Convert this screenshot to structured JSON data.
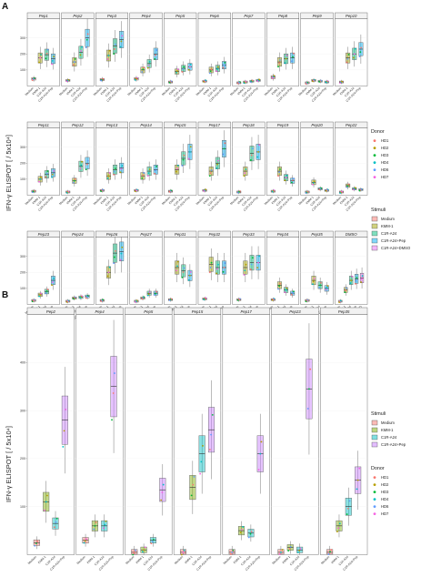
{
  "panel_a_label": "A",
  "panel_b_label": "B",
  "ylabel": "IFN-γ ELISPOT [ / 5x10⁴]",
  "legend_donor": {
    "title": "Donor",
    "items": [
      {
        "label": "HD1",
        "color": "#f8766d"
      },
      {
        "label": "HD2",
        "color": "#b79f00"
      },
      {
        "label": "HD3",
        "color": "#00ba38"
      },
      {
        "label": "HD4",
        "color": "#00bfc4"
      },
      {
        "label": "HD6",
        "color": "#619cff"
      },
      {
        "label": "HD7",
        "color": "#f564e3"
      }
    ]
  },
  "legend_stimuli_a": {
    "title": "Stimuli",
    "items": [
      {
        "label": "Medium",
        "color": "#f8766d"
      },
      {
        "label": "KMM-1",
        "color": "#a3a500"
      },
      {
        "label": "C1R-A24",
        "color": "#00bf7d"
      },
      {
        "label": "C1R-A24+Pep",
        "color": "#00b0f6"
      },
      {
        "label": "C1R-A24+DMSO",
        "color": "#e76bf3"
      }
    ]
  },
  "legend_stimuli_b": {
    "title": "Stimuli",
    "items": [
      {
        "label": "Medium",
        "color": "#f8766d"
      },
      {
        "label": "KMM-1",
        "color": "#7cae00"
      },
      {
        "label": "C1R-A24",
        "color": "#00bfc4"
      },
      {
        "label": "C1R-A24+Pep",
        "color": "#c77cff"
      }
    ]
  },
  "chart_data": [
    {
      "type": "box",
      "panel": "A",
      "categories": [
        "Medium",
        "KMM-1",
        "C1R-A24",
        "C1R-A24+Pep"
      ],
      "extra_category": "C1R-A24+DMSO",
      "yticks": [
        100,
        200,
        300
      ],
      "rows": [
        {
          "ylim": [
            0,
            420
          ],
          "facets": [
            {
              "name": "Pep1",
              "med": [
                45,
                175,
                195,
                170
              ]
            },
            {
              "name": "Pep2",
              "med": [
                35,
                150,
                210,
                300
              ]
            },
            {
              "name": "Pep3",
              "med": [
                40,
                190,
                250,
                290
              ]
            },
            {
              "name": "Pep4",
              "med": [
                45,
                100,
                140,
                200
              ]
            },
            {
              "name": "Pep5",
              "med": [
                25,
                90,
                110,
                120
              ]
            },
            {
              "name": "Pep6",
              "med": [
                30,
                100,
                110,
                130
              ]
            },
            {
              "name": "Pep7",
              "med": [
                20,
                25,
                30,
                35
              ]
            },
            {
              "name": "Pep8",
              "med": [
                55,
                150,
                170,
                175
              ]
            },
            {
              "name": "Pep9",
              "med": [
                20,
                35,
                30,
                25
              ]
            },
            {
              "name": "Pep10",
              "med": [
                25,
                175,
                200,
                230
              ]
            }
          ]
        },
        {
          "ylim": [
            0,
            420
          ],
          "facets": [
            {
              "name": "Pep11",
              "med": [
                25,
                100,
                130,
                140
              ]
            },
            {
              "name": "Pep12",
              "med": [
                20,
                90,
                180,
                200
              ]
            },
            {
              "name": "Pep13",
              "med": [
                30,
                120,
                160,
                170
              ]
            },
            {
              "name": "Pep14",
              "med": [
                30,
                120,
                150,
                160
              ]
            },
            {
              "name": "Pep15",
              "med": [
                25,
                160,
                230,
                270
              ]
            },
            {
              "name": "Pep17",
              "med": [
                30,
                150,
                200,
                290
              ]
            },
            {
              "name": "Pep18",
              "med": [
                20,
                150,
                260,
                270
              ]
            },
            {
              "name": "Pep19",
              "med": [
                25,
                150,
                110,
                90
              ]
            },
            {
              "name": "Pep20",
              "med": [
                20,
                80,
                40,
                30
              ]
            },
            {
              "name": "Pep22",
              "med": [
                20,
                60,
                40,
                35
              ]
            }
          ]
        },
        {
          "ylim": [
            0,
            420
          ],
          "facets": [
            {
              "name": "Pep23",
              "med": [
                25,
                60,
                80,
                150
              ]
            },
            {
              "name": "Pep24",
              "med": [
                20,
                40,
                45,
                50
              ]
            },
            {
              "name": "Pep26",
              "med": [
                25,
                200,
                320,
                330
              ]
            },
            {
              "name": "Pep27",
              "med": [
                20,
                40,
                70,
                70
              ]
            },
            {
              "name": "Pep31",
              "med": [
                30,
                230,
                210,
                180
              ]
            },
            {
              "name": "Pep32",
              "med": [
                35,
                250,
                230,
                230
              ]
            },
            {
              "name": "Pep33",
              "med": [
                30,
                230,
                260,
                260
              ]
            },
            {
              "name": "Pep34",
              "med": [
                30,
                120,
                90,
                70
              ]
            },
            {
              "name": "Pep35",
              "med": [
                25,
                150,
                120,
                100
              ]
            },
            {
              "name": "DMSO",
              "med": [
                20,
                90,
                150,
                160,
                165
              ]
            }
          ]
        }
      ]
    },
    {
      "type": "box",
      "panel": "B",
      "categories": [
        "Medium",
        "KMM-1",
        "C1R-A24",
        "C1R-A24+Pep"
      ],
      "yticks": [
        100,
        200,
        300,
        400
      ],
      "ylim": [
        0,
        500
      ],
      "facets": [
        {
          "name": "Pep2",
          "med": [
            25,
            110,
            65,
            280
          ]
        },
        {
          "name": "Pep4",
          "med": [
            30,
            60,
            60,
            350
          ]
        },
        {
          "name": "Pep5",
          "med": [
            5,
            10,
            30,
            135
          ]
        },
        {
          "name": "Pep15",
          "med": [
            5,
            140,
            210,
            260
          ]
        },
        {
          "name": "Pep17",
          "med": [
            5,
            50,
            45,
            210
          ]
        },
        {
          "name": "Pep23",
          "med": [
            5,
            15,
            10,
            345
          ]
        },
        {
          "name": "Pep35",
          "med": [
            5,
            60,
            100,
            155
          ]
        }
      ]
    }
  ]
}
